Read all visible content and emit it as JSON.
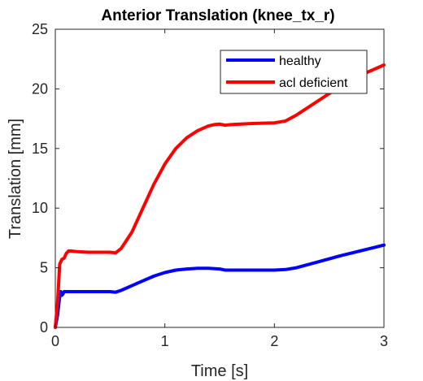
{
  "chart_data": {
    "type": "line",
    "title": "Anterior Translation (knee_tx_r)",
    "xlabel": "Time [s]",
    "ylabel": "Translation [mm]",
    "xlim": [
      0,
      3
    ],
    "ylim": [
      0,
      25
    ],
    "xticks": [
      0,
      1,
      2,
      3
    ],
    "yticks": [
      0,
      5,
      10,
      15,
      20,
      25
    ],
    "legend_position": "top-right",
    "grid": false,
    "series": [
      {
        "name": "healthy",
        "color": "#0000ff",
        "x": [
          0,
          0.02,
          0.04,
          0.05,
          0.06,
          0.07,
          0.08,
          0.1,
          0.15,
          0.2,
          0.3,
          0.4,
          0.5,
          0.55,
          0.6,
          0.7,
          0.8,
          0.9,
          1.0,
          1.1,
          1.2,
          1.3,
          1.4,
          1.5,
          1.55,
          1.6,
          1.8,
          2.0,
          2.1,
          2.2,
          2.4,
          2.6,
          2.8,
          3.0
        ],
        "y": [
          0,
          1.0,
          2.6,
          3.0,
          2.7,
          2.8,
          3.0,
          3.0,
          3.0,
          3.0,
          3.0,
          3.0,
          3.0,
          2.95,
          3.1,
          3.5,
          3.9,
          4.3,
          4.6,
          4.8,
          4.9,
          4.95,
          4.95,
          4.9,
          4.8,
          4.8,
          4.8,
          4.8,
          4.85,
          5.0,
          5.5,
          6.0,
          6.45,
          6.9
        ]
      },
      {
        "name": "acl deficient",
        "color": "#ff0000",
        "x": [
          0,
          0.02,
          0.04,
          0.06,
          0.08,
          0.1,
          0.12,
          0.15,
          0.2,
          0.3,
          0.4,
          0.5,
          0.55,
          0.6,
          0.7,
          0.8,
          0.9,
          1.0,
          1.1,
          1.2,
          1.3,
          1.4,
          1.45,
          1.5,
          1.55,
          1.6,
          1.8,
          2.0,
          2.1,
          2.2,
          2.4,
          2.6,
          2.8,
          3.0
        ],
        "y": [
          0,
          2.0,
          5.3,
          5.7,
          5.8,
          6.2,
          6.4,
          6.4,
          6.35,
          6.3,
          6.3,
          6.3,
          6.25,
          6.6,
          8.0,
          10.0,
          12.0,
          13.7,
          15.0,
          15.9,
          16.5,
          16.9,
          17.0,
          17.05,
          16.95,
          17.0,
          17.1,
          17.15,
          17.3,
          17.8,
          19.0,
          20.2,
          21.2,
          22.0
        ]
      }
    ]
  }
}
